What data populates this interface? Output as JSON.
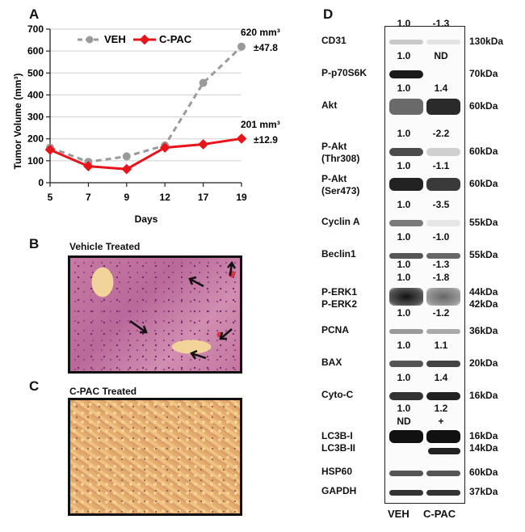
{
  "panels": {
    "a": "A",
    "b": "B",
    "c": "C",
    "d": "D"
  },
  "chart_data": {
    "type": "line",
    "x": [
      5,
      7,
      9,
      12,
      17,
      19
    ],
    "categories": [
      "5",
      "7",
      "9",
      "12",
      "17",
      "19"
    ],
    "series": [
      {
        "name": "VEH",
        "color": "#9a9a9a",
        "values": [
          160,
          95,
          120,
          170,
          455,
          620
        ]
      },
      {
        "name": "C-PAC",
        "color": "#e8141b",
        "values": [
          150,
          75,
          62,
          160,
          175,
          201
        ]
      }
    ],
    "xlabel": "Days",
    "ylabel": "Tumor Volume (mm³)",
    "ylim": [
      0,
      700
    ],
    "yticks": [
      "0",
      "100",
      "200",
      "300",
      "400",
      "500",
      "600",
      "700"
    ],
    "legend_position": "top-left",
    "grid": true,
    "annotations": [
      {
        "line1": "620 mm³",
        "line2": "±47.8"
      },
      {
        "line1": "201 mm³",
        "line2": "±12.9"
      }
    ]
  },
  "histology": {
    "vehicle_title": "Vehicle Treated",
    "cpac_title": "C-PAC Treated"
  },
  "blot": {
    "columns": [
      "VEH",
      "C-PAC"
    ],
    "rows": [
      {
        "label": "CD31",
        "v1": "1.0",
        "v2": "-1.3",
        "kda": "130kDa"
      },
      {
        "label": "P-p70S6K",
        "v1": "1.0",
        "v2": "ND",
        "kda": "70kDa"
      },
      {
        "label": "Akt",
        "v1": "1.0",
        "v2": "1.4",
        "kda": "60kDa"
      },
      {
        "label": "P-Akt",
        "label2": "(Thr308)",
        "v1": "1.0",
        "v2": "-2.2",
        "kda": "60kDa"
      },
      {
        "label": "P-Akt",
        "label2": "(Ser473)",
        "v1": "1.0",
        "v2": "-1.1",
        "kda": "60kDa"
      },
      {
        "label": "Cyclin A",
        "v1": "1.0",
        "v2": "-3.5",
        "kda": "55kDa"
      },
      {
        "label": "Beclin1",
        "v1": "1.0",
        "v2": "-1.0",
        "kda": "55kDa"
      },
      {
        "label": "P-ERK1",
        "label2": "P-ERK2",
        "v1": "1.0",
        "v2": "-1.3",
        "v1b": "1.0",
        "v2b": "-1.8",
        "kda": "44kDa",
        "kda2": "42kDa"
      },
      {
        "label": "PCNA",
        "v1": "1.0",
        "v2": "-1.2",
        "kda": "36kDa"
      },
      {
        "label": "BAX",
        "v1": "1.0",
        "v2": "1.1",
        "kda": "20kDa"
      },
      {
        "label": "Cyto-C",
        "v1": "1.0",
        "v2": "1.4",
        "kda": "16kDa"
      },
      {
        "label": "LC3B-I",
        "label2": "LC3B-II",
        "v1": "1.0",
        "v2": "1.2",
        "v1b": "ND",
        "v2b": "+",
        "kda": "16kDa",
        "kda2": "14kDa"
      },
      {
        "label": "HSP60",
        "kda": "60kDa"
      },
      {
        "label": "GAPDH",
        "kda": "37kDa"
      }
    ]
  }
}
